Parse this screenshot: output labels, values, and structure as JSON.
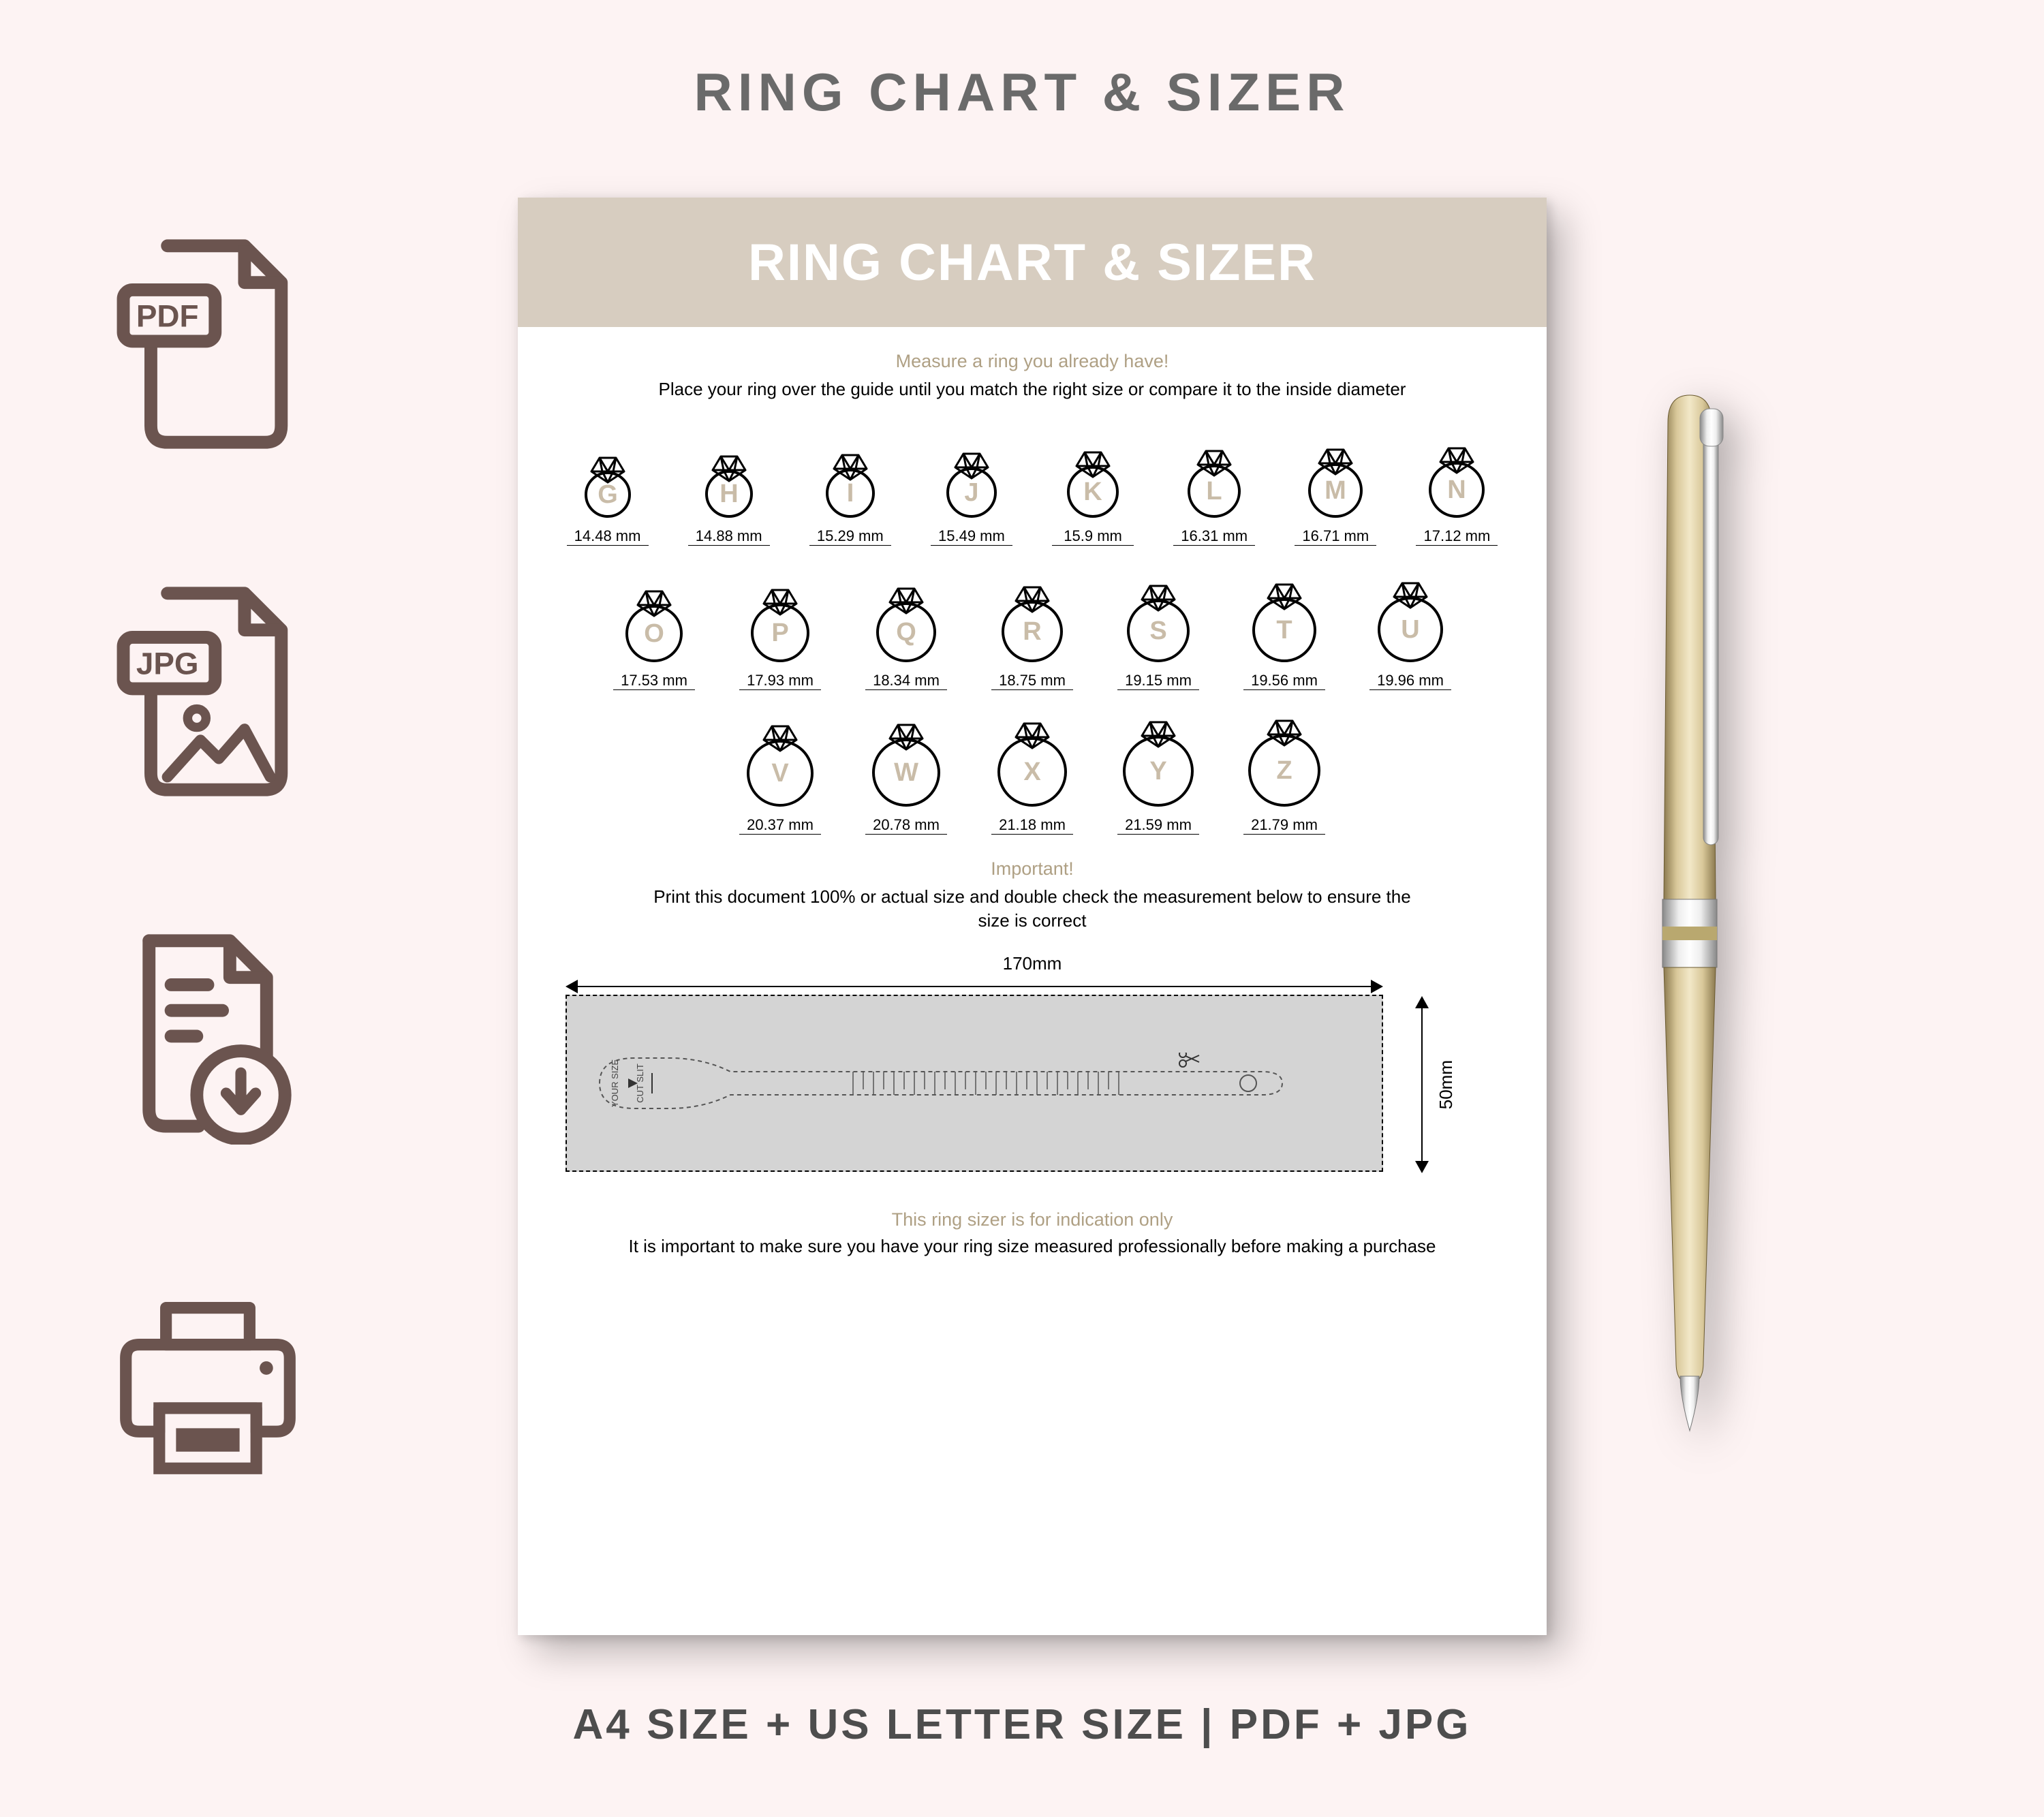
{
  "colors": {
    "page_bg": "#fdf3f3",
    "icon_stroke": "#6b544f",
    "sheet_header_bg": "#d7cdc0",
    "sheet_header_text": "#ffffff",
    "accent_text": "#afa084",
    "ring_letter": "#c9bca8",
    "ruler_bg": "#d4d4d4",
    "main_title": "#6a6a6a",
    "footer": "#4d4d4d"
  },
  "main_title": "RING CHART & SIZER",
  "icons": {
    "pdf_label": "PDF",
    "jpg_label": "JPG"
  },
  "sheet": {
    "header": "RING CHART & SIZER",
    "instr_head": "Measure a ring you already have!",
    "instr_text": "Place your ring over the guide until you match the right size or compare it to the inside diameter",
    "important_head": "Important!",
    "important_text": "Print this document 100% or actual size and double check the measurement below to ensure the size is correct",
    "disclaimer_head": "This ring sizer is for indication only",
    "disclaimer_text": "It is important to make sure you have your ring size measured professionally before making a purchase",
    "ruler": {
      "width_label": "170mm",
      "height_label": "50mm",
      "strip_your_size": "YOUR SIZE",
      "strip_cut_slit": "CUT SLIT"
    }
  },
  "rings": {
    "row1": [
      {
        "letter": "G",
        "mm": "14.48 mm",
        "r": 32
      },
      {
        "letter": "H",
        "mm": "14.88 mm",
        "r": 33
      },
      {
        "letter": "I",
        "mm": "15.29 mm",
        "r": 34
      },
      {
        "letter": "J",
        "mm": "15.49 mm",
        "r": 35
      },
      {
        "letter": "K",
        "mm": "15.9 mm",
        "r": 36
      },
      {
        "letter": "L",
        "mm": "16.31 mm",
        "r": 37
      },
      {
        "letter": "M",
        "mm": "16.71 mm",
        "r": 38
      },
      {
        "letter": "N",
        "mm": "17.12 mm",
        "r": 39
      }
    ],
    "row2": [
      {
        "letter": "O",
        "mm": "17.53 mm",
        "r": 40
      },
      {
        "letter": "P",
        "mm": "17.93 mm",
        "r": 41
      },
      {
        "letter": "Q",
        "mm": "18.34 mm",
        "r": 42
      },
      {
        "letter": "R",
        "mm": "18.75 mm",
        "r": 43
      },
      {
        "letter": "S",
        "mm": "19.15 mm",
        "r": 44
      },
      {
        "letter": "T",
        "mm": "19.56 mm",
        "r": 45
      },
      {
        "letter": "U",
        "mm": "19.96 mm",
        "r": 46
      }
    ],
    "row3": [
      {
        "letter": "V",
        "mm": "20.37 mm",
        "r": 47
      },
      {
        "letter": "W",
        "mm": "20.78 mm",
        "r": 48
      },
      {
        "letter": "X",
        "mm": "21.18 mm",
        "r": 49
      },
      {
        "letter": "Y",
        "mm": "21.59 mm",
        "r": 50
      },
      {
        "letter": "Z",
        "mm": "21.79 mm",
        "r": 51
      }
    ]
  },
  "footer": "A4 SIZE + US LETTER SIZE  |  PDF  +  JPG"
}
